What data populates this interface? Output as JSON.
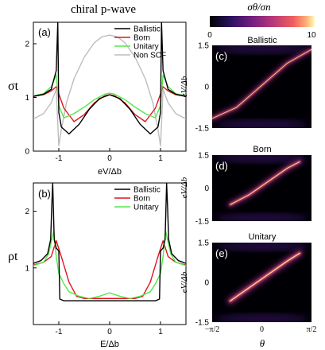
{
  "figure": {
    "title": "chiral p-wave",
    "title_italic_part": "p",
    "colorbar": {
      "label": "σθ/σn",
      "ticks": [
        "0",
        "10"
      ],
      "range": [
        0,
        10
      ]
    }
  },
  "colors": {
    "ballistic": "#000000",
    "born": "#e0141e",
    "unitary": "#52e84a",
    "non_scf": "#bdbdbd"
  },
  "chart_data": [
    {
      "type": "line",
      "panel": "(a)",
      "ylabel": "σt",
      "xlabel": "eV/Δb",
      "xlim": [
        -1.5,
        1.5
      ],
      "ylim": [
        0,
        2.4
      ],
      "xticks": [
        -1,
        0,
        1
      ],
      "yticks": [
        0,
        1,
        2
      ],
      "legend": "top-right",
      "series": [
        {
          "name": "Ballistic",
          "x": [
            -1.5,
            -1.3,
            -1.15,
            -1.05,
            -1.02,
            -1.0,
            -0.95,
            -0.8,
            -0.6,
            -0.4,
            -0.2,
            0,
            0.2,
            0.4,
            0.6,
            0.8,
            0.95,
            1.0,
            1.02,
            1.05,
            1.15,
            1.3,
            1.5
          ],
          "y": [
            1.02,
            1.06,
            1.15,
            1.5,
            2.4,
            0.72,
            0.45,
            0.32,
            0.5,
            0.78,
            0.98,
            1.05,
            0.98,
            0.78,
            0.5,
            0.32,
            0.45,
            0.72,
            2.4,
            1.5,
            1.15,
            1.06,
            1.02
          ]
        },
        {
          "name": "Born",
          "x": [
            -1.5,
            -1.3,
            -1.15,
            -1.05,
            -0.9,
            -0.7,
            -0.5,
            -0.3,
            -0.1,
            0,
            0.1,
            0.3,
            0.5,
            0.7,
            0.9,
            1.05,
            1.15,
            1.3,
            1.5
          ],
          "y": [
            1.02,
            1.05,
            1.12,
            1.2,
            0.8,
            0.55,
            0.68,
            0.9,
            1.03,
            1.05,
            1.03,
            0.9,
            0.68,
            0.55,
            0.8,
            1.2,
            1.12,
            1.05,
            1.02
          ]
        },
        {
          "name": "Unitary",
          "x": [
            -1.5,
            -1.3,
            -1.15,
            -1.05,
            -1.0,
            -0.9,
            -0.7,
            -0.5,
            -0.3,
            -0.1,
            0,
            0.1,
            0.3,
            0.5,
            0.7,
            0.9,
            1.0,
            1.05,
            1.15,
            1.3,
            1.5
          ],
          "y": [
            1.03,
            1.07,
            1.2,
            1.42,
            0.85,
            0.62,
            0.7,
            0.82,
            0.96,
            1.06,
            1.08,
            1.06,
            0.96,
            0.82,
            0.7,
            0.62,
            0.85,
            1.42,
            1.2,
            1.07,
            1.03
          ]
        },
        {
          "name": "Non SCF",
          "x": [
            -1.5,
            -1.3,
            -1.15,
            -1.05,
            -1.0,
            -0.95,
            -0.85,
            -0.7,
            -0.5,
            -0.3,
            -0.15,
            0,
            0.15,
            0.3,
            0.5,
            0.7,
            0.85,
            0.95,
            1.0,
            1.05,
            1.15,
            1.3,
            1.5
          ],
          "y": [
            0.6,
            0.7,
            0.9,
            1.15,
            0.1,
            0.4,
            0.9,
            1.35,
            1.75,
            2.02,
            2.13,
            2.16,
            2.13,
            2.02,
            1.75,
            1.35,
            0.9,
            0.4,
            0.1,
            1.15,
            0.9,
            0.7,
            0.6
          ]
        }
      ]
    },
    {
      "type": "line",
      "panel": "(b)",
      "ylabel": "ρt",
      "xlabel": "E/Δb",
      "xlim": [
        -1.5,
        1.5
      ],
      "ylim": [
        0,
        2.5
      ],
      "xticks": [
        -1,
        0,
        1
      ],
      "yticks": [
        1,
        2
      ],
      "legend": "top-right",
      "series": [
        {
          "name": "Ballistic",
          "x": [
            -1.5,
            -1.35,
            -1.22,
            -1.16,
            -1.14,
            -1.12,
            -1.09,
            -1.05,
            -1.0,
            -0.98,
            -0.9,
            -0.5,
            0,
            0.5,
            0.9,
            0.98,
            1.0,
            1.05,
            1.09,
            1.12,
            1.14,
            1.16,
            1.22,
            1.35,
            1.5
          ],
          "y": [
            1.08,
            1.13,
            1.25,
            1.5,
            2.05,
            2.5,
            1.5,
            1.35,
            1.3,
            0.45,
            0.42,
            0.42,
            0.42,
            0.42,
            0.42,
            0.45,
            1.3,
            1.35,
            1.5,
            2.5,
            2.05,
            1.5,
            1.25,
            1.13,
            1.08
          ]
        },
        {
          "name": "Born",
          "x": [
            -1.5,
            -1.3,
            -1.15,
            -1.05,
            -0.95,
            -0.8,
            -0.65,
            -0.5,
            0,
            0.5,
            0.65,
            0.8,
            0.95,
            1.05,
            1.15,
            1.3,
            1.5
          ],
          "y": [
            1.05,
            1.1,
            1.2,
            1.48,
            1.2,
            0.75,
            0.5,
            0.46,
            0.46,
            0.46,
            0.5,
            0.75,
            1.2,
            1.48,
            1.2,
            1.1,
            1.05
          ]
        },
        {
          "name": "Unitary",
          "x": [
            -1.5,
            -1.3,
            -1.2,
            -1.1,
            -1.05,
            -1.0,
            -0.9,
            -0.8,
            -0.6,
            -0.4,
            -0.2,
            0,
            0.2,
            0.4,
            0.6,
            0.8,
            0.9,
            1.0,
            1.05,
            1.1,
            1.2,
            1.3,
            1.5
          ],
          "y": [
            1.04,
            1.1,
            1.25,
            1.65,
            1.2,
            0.9,
            0.72,
            0.58,
            0.5,
            0.46,
            0.5,
            0.56,
            0.5,
            0.46,
            0.5,
            0.58,
            0.72,
            0.9,
            1.2,
            1.65,
            1.25,
            1.1,
            1.04
          ]
        }
      ]
    },
    {
      "type": "heatmap",
      "panel": "(c)",
      "title": "Ballistic",
      "ylabel": "eV/Δb",
      "ylim": [
        -1.5,
        1.5
      ],
      "yticks": [
        "1.5",
        "0",
        "-1.5"
      ],
      "xlim": [
        "-π/2",
        "π/2"
      ],
      "features": {
        "diagonal_band": [
          [
            -1.57,
            -1.15
          ],
          [
            -0.8,
            -0.75
          ],
          [
            0,
            0.05
          ],
          [
            0.8,
            0.85
          ],
          [
            1.57,
            1.35
          ]
        ],
        "flat_bands_eV": [
          1.37,
          -1.37
        ],
        "peak_value": 10
      }
    },
    {
      "type": "heatmap",
      "panel": "(d)",
      "title": "Born",
      "ylabel": "eV/Δb",
      "ylim": [
        -1.5,
        1.5
      ],
      "yticks": [
        "1.5",
        "0",
        "-1.5"
      ],
      "xlim": [
        "-π/2",
        "π/2"
      ],
      "features": {
        "diagonal_band": [
          [
            -1.0,
            -0.75
          ],
          [
            -0.4,
            -0.3
          ],
          [
            0.2,
            0.3
          ],
          [
            0.8,
            0.9
          ],
          [
            1.2,
            1.2
          ]
        ],
        "flat_bands_eV": [
          1.37,
          -1.37
        ],
        "peak_value": 10
      }
    },
    {
      "type": "heatmap",
      "panel": "(e)",
      "title": "Unitary",
      "ylabel": "eV/Δb",
      "ylim": [
        -1.5,
        1.5
      ],
      "yticks": [
        "1.5",
        "0",
        "-1.5"
      ],
      "xlim": [
        "-π/2",
        "π/2"
      ],
      "xticks": [
        "−π/2",
        "0",
        "π/2"
      ],
      "xlabel": "θ",
      "features": {
        "diagonal_band": [
          [
            -1.0,
            -0.7
          ],
          [
            -0.4,
            -0.2
          ],
          [
            0.2,
            0.3
          ],
          [
            0.8,
            0.8
          ],
          [
            1.2,
            1.1
          ]
        ],
        "flat_bands_eV": [
          1.37,
          -1.37
        ],
        "peak_value": 10
      }
    }
  ]
}
